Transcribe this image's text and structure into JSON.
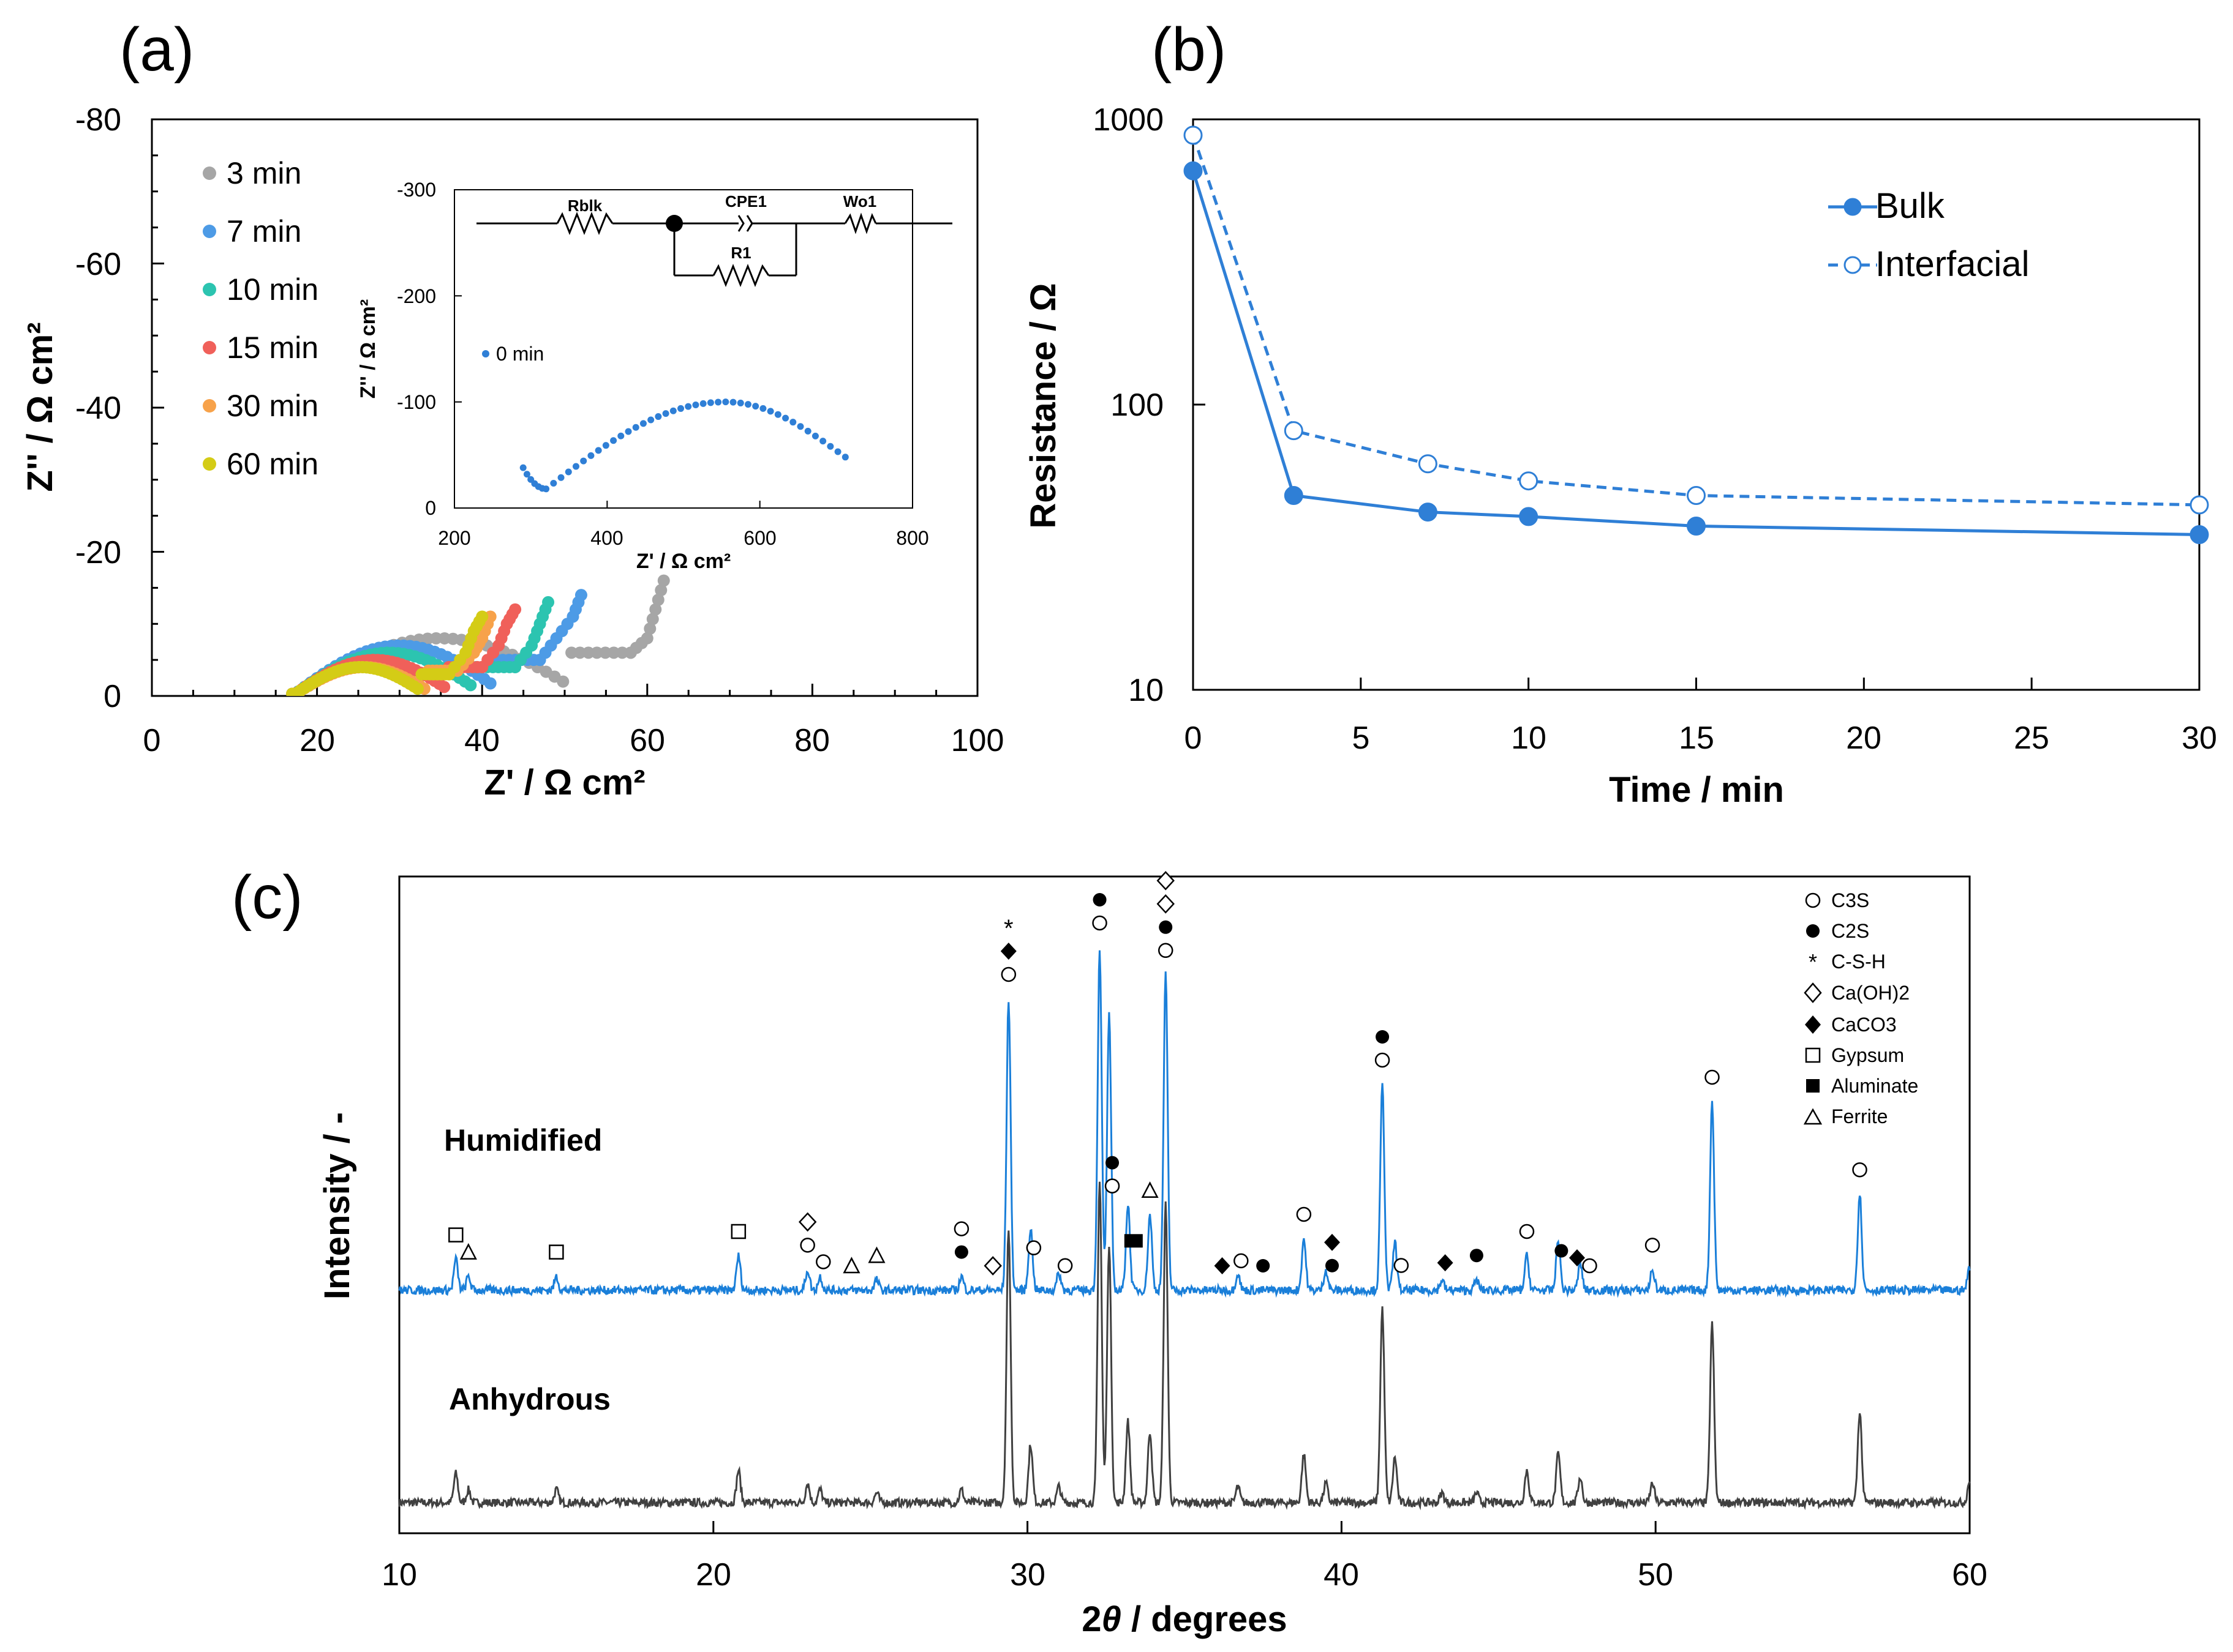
{
  "chart_data": [
    {
      "panel": "(a)",
      "type": "scatter",
      "xlabel": "Z' / Ω cm²",
      "ylabel": "Z'' / Ω cm²",
      "xlim": [
        0,
        100
      ],
      "ylim": [
        0,
        -80
      ],
      "xticks": [
        "0",
        "20",
        "40",
        "60",
        "80",
        "100"
      ],
      "yticks": [
        "0",
        "-20",
        "-40",
        "-60",
        "-80"
      ],
      "series": [
        {
          "name": "3 min",
          "color": "#a6a6a6",
          "x0": 17,
          "peak": 8,
          "dip_x": 58,
          "dip": 6,
          "tail": [
            [
              58,
              6
            ],
            [
              60,
              8
            ],
            [
              61,
              12
            ],
            [
              62,
              16
            ]
          ]
        },
        {
          "name": "7 min",
          "color": "#4d9be6",
          "x0": 17,
          "peak": 7,
          "dip_x": 47,
          "dip": 5,
          "tail": [
            [
              47,
              5
            ],
            [
              49,
              8
            ],
            [
              51,
              11
            ],
            [
              52,
              14
            ]
          ]
        },
        {
          "name": "10 min",
          "color": "#2cc4b0",
          "x0": 17,
          "peak": 6,
          "dip_x": 44,
          "dip": 4,
          "tail": [
            [
              44,
              4
            ],
            [
              46,
              7
            ],
            [
              47,
              10
            ],
            [
              48,
              13
            ]
          ]
        },
        {
          "name": "15 min",
          "color": "#f0605a",
          "x0": 17,
          "peak": 5,
          "dip_x": 40,
          "dip": 4,
          "tail": [
            [
              40,
              4
            ],
            [
              42,
              7
            ],
            [
              43,
              10
            ],
            [
              44,
              12
            ]
          ]
        },
        {
          "name": "30 min",
          "color": "#f7a24a",
          "x0": 17,
          "peak": 4,
          "dip_x": 37,
          "dip": 3.5,
          "tail": [
            [
              37,
              3.5
            ],
            [
              39,
              6
            ],
            [
              40,
              8
            ],
            [
              41,
              11
            ]
          ]
        },
        {
          "name": "60 min",
          "color": "#d4cc16",
          "x0": 17,
          "peak": 4,
          "dip_x": 36,
          "dip": 3,
          "tail": [
            [
              36,
              3
            ],
            [
              38,
              6
            ],
            [
              39,
              9
            ],
            [
              40,
              11
            ]
          ]
        }
      ],
      "inset": {
        "xlabel": "Z' / Ω cm²",
        "ylabel": "Z'' / Ω cm²",
        "xlim": [
          200,
          800
        ],
        "ylim": [
          0,
          -300
        ],
        "xticks": [
          "200",
          "400",
          "600",
          "800"
        ],
        "yticks": [
          "0",
          "-100",
          "-200",
          "-300"
        ],
        "series_name": "0 min",
        "color": "#2f7fd6",
        "arc": {
          "start_x": 290,
          "start_y": 38,
          "min_x": 320,
          "min_y": 18,
          "peak_x": 555,
          "peak_y": 100,
          "end_x": 712,
          "end_y": 48
        },
        "circuit": {
          "r_bulk": "Rblk",
          "cpe": "CPE1",
          "r1": "R1",
          "warburg": "Wo1"
        }
      }
    },
    {
      "panel": "(b)",
      "type": "line",
      "xlabel": "Time / min",
      "ylabel": "Resistance / Ω",
      "yscale": "log",
      "xlim": [
        0,
        30
      ],
      "ylim": [
        10,
        1000
      ],
      "xticks": [
        "0",
        "5",
        "10",
        "15",
        "20",
        "25",
        "30"
      ],
      "yticks": [
        "10",
        "100",
        "1000"
      ],
      "color": "#2f7fd6",
      "series": [
        {
          "name": "Bulk",
          "marker": "filled",
          "style": "solid",
          "x": [
            0,
            3,
            7,
            10,
            15,
            30
          ],
          "y": [
            660,
            48,
            42,
            40.5,
            37.5,
            35
          ]
        },
        {
          "name": "Interfacial",
          "marker": "open",
          "style": "dashed",
          "x": [
            0,
            3,
            7,
            10,
            15,
            30
          ],
          "y": [
            880,
            81,
            62,
            54,
            48,
            44.5
          ]
        }
      ]
    },
    {
      "panel": "(c)",
      "type": "line",
      "xlabel": "2θ / degrees",
      "xlabel_theta": "θ",
      "xlabel_rest": " / degrees",
      "ylabel": "Intensity / -",
      "xlim": [
        10,
        60
      ],
      "xticks": [
        "10",
        "20",
        "30",
        "40",
        "50",
        "60"
      ],
      "series": [
        {
          "name": "Humidified",
          "color": "#1a7fd9"
        },
        {
          "name": "Anhydrous",
          "color": "#404040"
        }
      ],
      "peaks": [
        [
          11.8,
          0.09
        ],
        [
          12.2,
          0.04
        ],
        [
          15,
          0.04
        ],
        [
          20.8,
          0.1
        ],
        [
          23,
          0.06
        ],
        [
          23.4,
          0.04
        ],
        [
          25.2,
          0.03
        ],
        [
          27.9,
          0.04
        ],
        [
          29.4,
          0.85
        ],
        [
          30.1,
          0.18
        ],
        [
          31,
          0.05
        ],
        [
          32.3,
          1.0
        ],
        [
          32.6,
          0.8
        ],
        [
          33.2,
          0.25
        ],
        [
          33.9,
          0.22
        ],
        [
          34.4,
          0.92
        ],
        [
          36.7,
          0.05
        ],
        [
          38.8,
          0.15
        ],
        [
          39.5,
          0.06
        ],
        [
          41.3,
          0.6
        ],
        [
          41.7,
          0.14
        ],
        [
          43.2,
          0.03
        ],
        [
          44.3,
          0.03
        ],
        [
          45.9,
          0.1
        ],
        [
          46.9,
          0.15
        ],
        [
          47.6,
          0.08
        ],
        [
          49.9,
          0.06
        ],
        [
          51.8,
          0.55
        ],
        [
          56.5,
          0.28
        ],
        [
          60,
          0.07
        ]
      ],
      "legend": [
        "C3S",
        "C2S",
        "C-S-H",
        "Ca(OH)2",
        "CaCO3",
        "Gypsum",
        "Aluminate",
        "Ferrite"
      ],
      "markers": [
        {
          "x": 11.8,
          "sym": "sq"
        },
        {
          "x": 12.2,
          "sym": "tri"
        },
        {
          "x": 15,
          "sym": "sq"
        },
        {
          "x": 20.8,
          "sym": "sq"
        },
        {
          "x": 23,
          "stack": [
            "oc",
            "dia"
          ]
        },
        {
          "x": 23.5,
          "sym": "oc"
        },
        {
          "x": 24.4,
          "sym": "tri"
        },
        {
          "x": 25.2,
          "sym": "tri"
        },
        {
          "x": 27.9,
          "stack": [
            "fc",
            "oc"
          ]
        },
        {
          "x": 28.9,
          "sym": "dia"
        },
        {
          "x": 29.4,
          "stack": [
            "oc",
            "fd",
            "star"
          ]
        },
        {
          "x": 30.2,
          "sym": "oc"
        },
        {
          "x": 31.2,
          "sym": "oc"
        },
        {
          "x": 32.3,
          "stack": [
            "oc",
            "fc"
          ]
        },
        {
          "x": 32.7,
          "stack": [
            "oc",
            "fc"
          ]
        },
        {
          "x": 33.3,
          "sym": "fsq"
        },
        {
          "x": 33.9,
          "sym": "tri"
        },
        {
          "x": 34.4,
          "stack": [
            "oc",
            "fc",
            "dia",
            "dia"
          ]
        },
        {
          "x": 36.2,
          "sym": "fd"
        },
        {
          "x": 36.8,
          "sym": "oc"
        },
        {
          "x": 37.5,
          "sym": "fc"
        },
        {
          "x": 38.8,
          "sym": "oc"
        },
        {
          "x": 39.7,
          "stack": [
            "fc",
            "fd"
          ]
        },
        {
          "x": 41.3,
          "stack": [
            "oc",
            "fc"
          ]
        },
        {
          "x": 41.9,
          "sym": "oc"
        },
        {
          "x": 43.3,
          "sym": "fd"
        },
        {
          "x": 44.3,
          "sym": "fc"
        },
        {
          "x": 45.9,
          "sym": "oc"
        },
        {
          "x": 47.0,
          "sym": "fc"
        },
        {
          "x": 47.5,
          "sym": "fd"
        },
        {
          "x": 47.9,
          "sym": "oc"
        },
        {
          "x": 49.9,
          "sym": "oc"
        },
        {
          "x": 51.8,
          "sym": "oc"
        },
        {
          "x": 56.5,
          "sym": "oc"
        }
      ]
    }
  ]
}
